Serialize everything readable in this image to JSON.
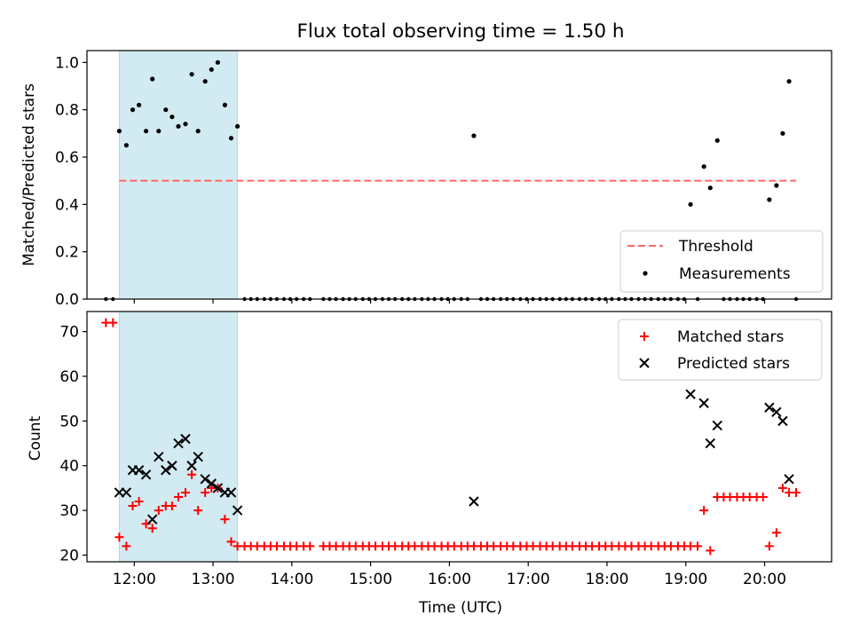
{
  "figure_title": "Flux total observing time = 1.50 h",
  "chart_data": [
    {
      "type": "scatter",
      "ylabel": "Matched/Predicted stars",
      "xlim": [
        11.4,
        20.85
      ],
      "ylim": [
        0,
        1.05
      ],
      "yticks": [
        0.0,
        0.2,
        0.4,
        0.6,
        0.8,
        1.0
      ],
      "ytick_labels": [
        "0.0",
        "0.2",
        "0.4",
        "0.6",
        "0.8",
        "1.0"
      ],
      "highlight_span": [
        11.81,
        13.31
      ],
      "highlight_color": "#add8e6",
      "threshold": {
        "label": "Threshold",
        "value": 0.5,
        "x_range": [
          11.81,
          20.4
        ],
        "color": "#ff6666",
        "style": "dashed"
      },
      "legend_position": "lower right",
      "series": [
        {
          "name": "Measurements",
          "marker": "dot",
          "color": "#000000",
          "x": [
            11.81,
            11.9,
            11.98,
            12.06,
            12.15,
            12.23,
            12.31,
            12.4,
            12.48,
            12.56,
            12.65,
            12.73,
            12.81,
            12.9,
            12.98,
            13.06,
            13.15,
            13.23,
            13.31,
            16.31,
            19.06,
            19.23,
            19.31,
            19.4,
            20.06,
            20.15,
            20.23,
            20.31
          ],
          "y": [
            0.71,
            0.65,
            0.8,
            0.82,
            0.71,
            0.93,
            0.71,
            0.8,
            0.77,
            0.73,
            0.74,
            0.95,
            0.71,
            0.92,
            0.97,
            1.0,
            0.82,
            0.68,
            0.73,
            0.69,
            0.4,
            0.56,
            0.47,
            0.67,
            0.42,
            0.48,
            0.7,
            0.92
          ],
          "zero_x": [
            11.64,
            11.73,
            13.4,
            13.48,
            13.56,
            13.65,
            13.73,
            13.81,
            13.9,
            13.98,
            14.06,
            14.15,
            14.23,
            14.4,
            14.48,
            14.56,
            14.65,
            14.73,
            14.81,
            14.9,
            14.98,
            15.06,
            15.15,
            15.23,
            15.31,
            15.4,
            15.48,
            15.56,
            15.65,
            15.73,
            15.81,
            15.9,
            15.98,
            16.06,
            16.15,
            16.23,
            16.4,
            16.48,
            16.56,
            16.65,
            16.73,
            16.81,
            16.9,
            16.98,
            17.06,
            17.15,
            17.23,
            17.31,
            17.4,
            17.48,
            17.56,
            17.65,
            17.73,
            17.81,
            17.9,
            17.98,
            18.06,
            18.15,
            18.23,
            18.31,
            18.4,
            18.48,
            18.56,
            18.65,
            18.73,
            18.81,
            18.9,
            18.98,
            19.15,
            19.48,
            19.56,
            19.65,
            19.73,
            19.81,
            19.9,
            19.98,
            20.4
          ]
        }
      ]
    },
    {
      "type": "scatter",
      "xlabel": "Time (UTC)",
      "ylabel": "Count",
      "xlim": [
        11.4,
        20.85
      ],
      "ylim": [
        18.5,
        74.5
      ],
      "xticks": [
        12,
        13,
        14,
        15,
        16,
        17,
        18,
        19,
        20
      ],
      "xtick_labels": [
        "12:00",
        "13:00",
        "14:00",
        "15:00",
        "16:00",
        "17:00",
        "18:00",
        "19:00",
        "20:00"
      ],
      "yticks": [
        20,
        30,
        40,
        50,
        60,
        70
      ],
      "ytick_labels": [
        "20",
        "30",
        "40",
        "50",
        "60",
        "70"
      ],
      "highlight_span": [
        11.81,
        13.31
      ],
      "highlight_color": "#add8e6",
      "legend_position": "upper right",
      "series": [
        {
          "name": "Matched stars",
          "marker": "plus",
          "color": "#ff0000",
          "x": [
            11.64,
            11.73,
            11.81,
            11.9,
            11.98,
            12.06,
            12.15,
            12.23,
            12.31,
            12.4,
            12.48,
            12.56,
            12.65,
            12.73,
            12.81,
            12.9,
            12.98,
            13.06,
            13.15,
            13.23,
            13.31,
            13.4,
            13.48,
            13.56,
            13.65,
            13.73,
            13.81,
            13.9,
            13.98,
            14.06,
            14.15,
            14.23,
            14.4,
            14.48,
            14.56,
            14.65,
            14.73,
            14.81,
            14.9,
            14.98,
            15.06,
            15.15,
            15.23,
            15.31,
            15.4,
            15.48,
            15.56,
            15.65,
            15.73,
            15.81,
            15.9,
            15.98,
            16.06,
            16.15,
            16.23,
            16.31,
            16.4,
            16.48,
            16.56,
            16.65,
            16.73,
            16.81,
            16.9,
            16.98,
            17.06,
            17.15,
            17.23,
            17.31,
            17.4,
            17.48,
            17.56,
            17.65,
            17.73,
            17.81,
            17.9,
            17.98,
            18.06,
            18.15,
            18.23,
            18.31,
            18.4,
            18.48,
            18.56,
            18.65,
            18.73,
            18.81,
            18.9,
            18.98,
            19.06,
            19.15,
            19.23,
            19.31,
            19.4,
            19.48,
            19.56,
            19.65,
            19.73,
            19.81,
            19.9,
            19.98,
            20.06,
            20.15,
            20.23,
            20.31,
            20.4
          ],
          "y": [
            72,
            72,
            24,
            22,
            31,
            32,
            27,
            26,
            30,
            31,
            31,
            33,
            34,
            38,
            30,
            34,
            35,
            35,
            28,
            23,
            22,
            22,
            22,
            22,
            22,
            22,
            22,
            22,
            22,
            22,
            22,
            22,
            22,
            22,
            22,
            22,
            22,
            22,
            22,
            22,
            22,
            22,
            22,
            22,
            22,
            22,
            22,
            22,
            22,
            22,
            22,
            22,
            22,
            22,
            22,
            22,
            22,
            22,
            22,
            22,
            22,
            22,
            22,
            22,
            22,
            22,
            22,
            22,
            22,
            22,
            22,
            22,
            22,
            22,
            22,
            22,
            22,
            22,
            22,
            22,
            22,
            22,
            22,
            22,
            22,
            22,
            22,
            22,
            22,
            22,
            30,
            21,
            33,
            33,
            33,
            33,
            33,
            33,
            33,
            33,
            22,
            25,
            35,
            34,
            34
          ]
        },
        {
          "name": "Predicted stars",
          "marker": "x",
          "color": "#000000",
          "x": [
            11.81,
            11.9,
            11.98,
            12.06,
            12.15,
            12.23,
            12.31,
            12.4,
            12.48,
            12.56,
            12.65,
            12.73,
            12.81,
            12.9,
            12.98,
            13.06,
            13.15,
            13.23,
            13.31,
            16.31,
            19.06,
            19.23,
            19.31,
            19.4,
            20.06,
            20.15,
            20.23,
            20.31
          ],
          "y": [
            34,
            34,
            39,
            39,
            38,
            28,
            42,
            39,
            40,
            45,
            46,
            40,
            42,
            37,
            36,
            35,
            34,
            34,
            30,
            32,
            56,
            54,
            45,
            49,
            53,
            52,
            50,
            37
          ]
        }
      ]
    }
  ]
}
